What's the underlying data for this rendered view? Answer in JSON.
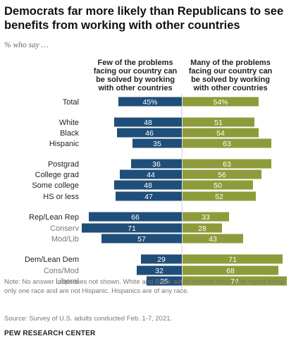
{
  "header": {
    "title": "Democrats far more likely than Republicans to see benefits from working with other countries",
    "subtitle": "% who say …"
  },
  "chart_data": {
    "type": "bar",
    "orientation": "horizontal-diverging",
    "columns": [
      "Few of the problems facing our country can be solved by working with other countries",
      "Many of the problems facing our country can be solved by working with other countries"
    ],
    "colors": {
      "few": "#1f4e79",
      "many": "#8e9b3a",
      "divider": "#cccccc"
    },
    "categories": [
      "Total",
      "White",
      "Black",
      "Hispanic",
      "Postgrad",
      "College grad",
      "Some college",
      "HS or less",
      "Rep/Lean Rep",
      "Conserv",
      "Mod/Lib",
      "Dem/Lean Dem",
      "Cons/Mod",
      "Liberal"
    ],
    "subgroup": [
      false,
      false,
      false,
      false,
      false,
      false,
      false,
      false,
      false,
      true,
      true,
      false,
      true,
      true
    ],
    "series": [
      {
        "name": "Few of the problems facing our country can be solved by working with other countries",
        "values": [
          45,
          48,
          46,
          35,
          36,
          44,
          48,
          47,
          66,
          71,
          57,
          29,
          32,
          25
        ],
        "labels": [
          "45%",
          "48",
          "46",
          "35",
          "36",
          "44",
          "48",
          "47",
          "66",
          "71",
          "57",
          "29",
          "32",
          "25"
        ]
      },
      {
        "name": "Many of the problems facing our country can be solved by working with other countries",
        "values": [
          54,
          51,
          54,
          63,
          63,
          56,
          50,
          52,
          33,
          28,
          43,
          71,
          68,
          74
        ],
        "labels": [
          "54%",
          "51",
          "54",
          "63",
          "63",
          "56",
          "50",
          "52",
          "33",
          "28",
          "43",
          "71",
          "68",
          "74"
        ]
      }
    ]
  },
  "footer": {
    "note": "Note: No answer responses not shown. White and Black adults include those who report being only one race and are not Hispanic. Hispanics are of any race.",
    "source": "Source: Survey of U.S. adults conducted Feb. 1-7, 2021.",
    "org": "PEW RESEARCH CENTER"
  }
}
